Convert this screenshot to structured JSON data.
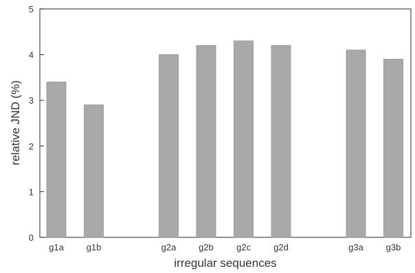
{
  "chart_data": {
    "type": "bar",
    "categories": [
      "g1a",
      "g1b",
      "g2a",
      "g2b",
      "g2c",
      "g2d",
      "g3a",
      "g3b"
    ],
    "groups": [
      [
        "g1a",
        "g1b"
      ],
      [
        "g2a",
        "g2b",
        "g2c",
        "g2d"
      ],
      [
        "g3a",
        "g3b"
      ]
    ],
    "values": [
      3.4,
      2.9,
      4.0,
      4.2,
      4.3,
      4.2,
      4.1,
      3.9
    ],
    "title": "",
    "xlabel": "irregular sequences",
    "ylabel": "relative JND (%)",
    "ylim": [
      0,
      5
    ],
    "yticks": [
      0,
      1,
      2,
      3,
      4,
      5
    ],
    "grid": false,
    "legend": "none",
    "colors": {
      "bar_fill": "#a9a9a9",
      "bar_stroke": "#8f8f8f",
      "axis": "#4a4a4a",
      "text": "#333333"
    }
  }
}
